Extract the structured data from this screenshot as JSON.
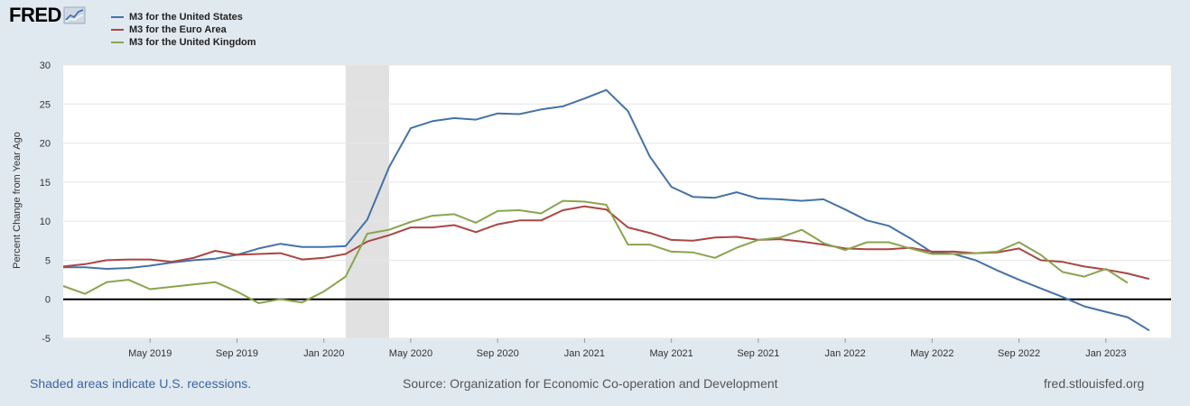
{
  "logo": {
    "text": "FRED"
  },
  "footer": {
    "recession_note": "Shaded areas indicate U.S. recessions.",
    "source": "Source: Organization for Economic Co-operation and Development",
    "site": "fred.stlouisfed.org"
  },
  "colors": {
    "background": "#e1e9f0",
    "plot_background": "#ffffff",
    "recession_shade": "#e1e1e1",
    "grid": "#e6e6e6",
    "zero_line": "#000000"
  },
  "chart_data": {
    "type": "line",
    "title": "",
    "xlabel": "",
    "ylabel": "Percent Change from Year Ago",
    "ylim": [
      -5,
      30
    ],
    "yticks": [
      -5,
      0,
      5,
      10,
      15,
      20,
      25,
      30
    ],
    "xlim": [
      "2019-01",
      "2023-04"
    ],
    "x_tick_labels": [
      {
        "date": "2019-05",
        "label": "May 2019"
      },
      {
        "date": "2019-09",
        "label": "Sep 2019"
      },
      {
        "date": "2020-01",
        "label": "Jan 2020"
      },
      {
        "date": "2020-05",
        "label": "May 2020"
      },
      {
        "date": "2020-09",
        "label": "Sep 2020"
      },
      {
        "date": "2021-01",
        "label": "Jan 2021"
      },
      {
        "date": "2021-05",
        "label": "May 2021"
      },
      {
        "date": "2021-09",
        "label": "Sep 2021"
      },
      {
        "date": "2022-01",
        "label": "Jan 2022"
      },
      {
        "date": "2022-05",
        "label": "May 2022"
      },
      {
        "date": "2022-09",
        "label": "Sep 2022"
      },
      {
        "date": "2023-01",
        "label": "Jan 2023"
      }
    ],
    "recession": {
      "start": "2020-02",
      "end": "2020-04"
    },
    "grid": true,
    "legend_position": "top-left",
    "series": [
      {
        "name": "M3 for the United States",
        "color": "#4572a7",
        "x": [
          "2019-01",
          "2019-02",
          "2019-03",
          "2019-04",
          "2019-05",
          "2019-06",
          "2019-07",
          "2019-08",
          "2019-09",
          "2019-10",
          "2019-11",
          "2019-12",
          "2020-01",
          "2020-02",
          "2020-03",
          "2020-04",
          "2020-05",
          "2020-06",
          "2020-07",
          "2020-08",
          "2020-09",
          "2020-10",
          "2020-11",
          "2020-12",
          "2021-01",
          "2021-02",
          "2021-03",
          "2021-04",
          "2021-05",
          "2021-06",
          "2021-07",
          "2021-08",
          "2021-09",
          "2021-10",
          "2021-11",
          "2021-12",
          "2022-01",
          "2022-02",
          "2022-03",
          "2022-04",
          "2022-05",
          "2022-06",
          "2022-07",
          "2022-08",
          "2022-09",
          "2022-10",
          "2022-11",
          "2022-12",
          "2023-01",
          "2023-02",
          "2023-03"
        ],
        "values": [
          4.1,
          4.1,
          3.9,
          4.0,
          4.3,
          4.7,
          5.0,
          5.2,
          5.7,
          6.5,
          7.1,
          6.7,
          6.7,
          6.8,
          10.2,
          16.9,
          21.9,
          22.8,
          23.2,
          23.0,
          23.8,
          23.7,
          24.3,
          24.7,
          25.7,
          26.8,
          24.1,
          18.3,
          14.4,
          13.1,
          13.0,
          13.7,
          12.9,
          12.8,
          12.6,
          12.8,
          11.5,
          10.1,
          9.4,
          7.8,
          6.0,
          5.8,
          5.0,
          3.7,
          2.5,
          1.4,
          0.3,
          -0.9,
          -1.6,
          -2.3,
          -4.0
        ]
      },
      {
        "name": "M3 for the Euro Area",
        "color": "#aa4643",
        "x": [
          "2019-01",
          "2019-02",
          "2019-03",
          "2019-04",
          "2019-05",
          "2019-06",
          "2019-07",
          "2019-08",
          "2019-09",
          "2019-10",
          "2019-11",
          "2019-12",
          "2020-01",
          "2020-02",
          "2020-03",
          "2020-04",
          "2020-05",
          "2020-06",
          "2020-07",
          "2020-08",
          "2020-09",
          "2020-10",
          "2020-11",
          "2020-12",
          "2021-01",
          "2021-02",
          "2021-03",
          "2021-04",
          "2021-05",
          "2021-06",
          "2021-07",
          "2021-08",
          "2021-09",
          "2021-10",
          "2021-11",
          "2021-12",
          "2022-01",
          "2022-02",
          "2022-03",
          "2022-04",
          "2022-05",
          "2022-06",
          "2022-07",
          "2022-08",
          "2022-09",
          "2022-10",
          "2022-11",
          "2022-12",
          "2023-01",
          "2023-02",
          "2023-03"
        ],
        "values": [
          4.2,
          4.5,
          5.0,
          5.1,
          5.1,
          4.8,
          5.3,
          6.2,
          5.7,
          5.8,
          5.9,
          5.1,
          5.3,
          5.8,
          7.4,
          8.2,
          9.2,
          9.2,
          9.5,
          8.6,
          9.6,
          10.1,
          10.1,
          11.4,
          11.9,
          11.5,
          9.2,
          8.5,
          7.6,
          7.5,
          7.9,
          8.0,
          7.6,
          7.7,
          7.4,
          7.0,
          6.5,
          6.4,
          6.4,
          6.6,
          6.1,
          6.1,
          5.9,
          6.0,
          6.5,
          5.0,
          4.8,
          4.2,
          3.8,
          3.3,
          2.6
        ]
      },
      {
        "name": "M3 for the United Kingdom",
        "color": "#89a54e",
        "x": [
          "2019-01",
          "2019-02",
          "2019-03",
          "2019-04",
          "2019-05",
          "2019-06",
          "2019-07",
          "2019-08",
          "2019-09",
          "2019-10",
          "2019-11",
          "2019-12",
          "2020-01",
          "2020-02",
          "2020-03",
          "2020-04",
          "2020-05",
          "2020-06",
          "2020-07",
          "2020-08",
          "2020-09",
          "2020-10",
          "2020-11",
          "2020-12",
          "2021-01",
          "2021-02",
          "2021-03",
          "2021-04",
          "2021-05",
          "2021-06",
          "2021-07",
          "2021-08",
          "2021-09",
          "2021-10",
          "2021-11",
          "2021-12",
          "2022-01",
          "2022-02",
          "2022-03",
          "2022-04",
          "2022-05",
          "2022-06",
          "2022-07",
          "2022-08",
          "2022-09",
          "2022-10",
          "2022-11",
          "2022-12",
          "2023-01",
          "2023-02"
        ],
        "values": [
          1.7,
          0.7,
          2.2,
          2.5,
          1.3,
          1.6,
          1.9,
          2.2,
          1.0,
          -0.5,
          0.0,
          -0.4,
          1.0,
          2.9,
          8.4,
          8.9,
          9.9,
          10.7,
          10.9,
          9.8,
          11.3,
          11.4,
          11.0,
          12.6,
          12.5,
          12.1,
          7.0,
          7.0,
          6.1,
          6.0,
          5.3,
          6.6,
          7.6,
          7.9,
          8.9,
          7.2,
          6.3,
          7.3,
          7.3,
          6.5,
          5.8,
          5.8,
          5.9,
          6.1,
          7.3,
          5.7,
          3.5,
          2.9,
          3.9,
          2.1
        ]
      }
    ]
  }
}
